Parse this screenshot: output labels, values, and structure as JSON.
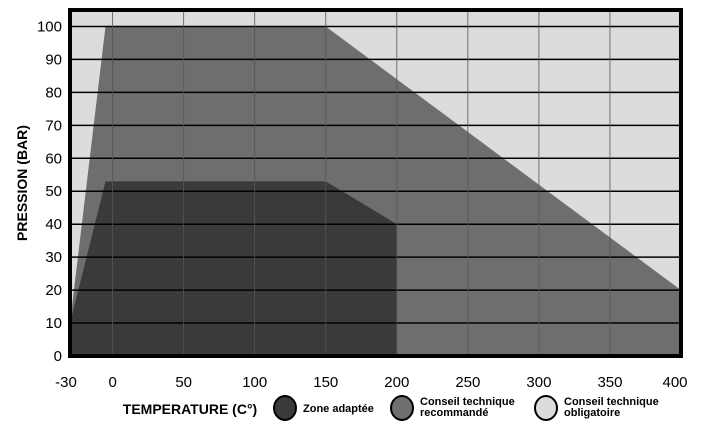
{
  "chart_data": {
    "type": "area",
    "xlabel": "TEMPERATURE  (C°)",
    "ylabel": "PRESSION (BAR)",
    "xlim": [
      -30,
      400
    ],
    "ylim": [
      0,
      105
    ],
    "x_ticks": [
      -30,
      0,
      50,
      100,
      150,
      200,
      250,
      300,
      350,
      400
    ],
    "y_ticks": [
      0,
      10,
      20,
      30,
      40,
      50,
      60,
      70,
      80,
      90,
      100
    ],
    "grid": true,
    "legend_position": "bottom",
    "series": [
      {
        "name": "Conseil technique obligatoire",
        "color": "#dcdcdc",
        "points": [
          [
            -30,
            0
          ],
          [
            -30,
            105
          ],
          [
            400,
            105
          ],
          [
            400,
            0
          ]
        ]
      },
      {
        "name": "Conseil technique recommandé",
        "color": "#6e6e6e",
        "points": [
          [
            -30,
            0
          ],
          [
            -30,
            10
          ],
          [
            -5,
            100
          ],
          [
            150,
            100
          ],
          [
            400,
            20
          ],
          [
            400,
            0
          ]
        ]
      },
      {
        "name": "Zone adaptée",
        "color": "#3a3a3a",
        "points": [
          [
            -30,
            0
          ],
          [
            -30,
            10
          ],
          [
            -5,
            53
          ],
          [
            150,
            53
          ],
          [
            200,
            40
          ],
          [
            200,
            0
          ]
        ]
      }
    ],
    "legend": [
      {
        "lines": [
          "Zone adaptée"
        ],
        "color": "#3a3a3a"
      },
      {
        "lines": [
          "Conseil technique",
          "recommandé"
        ],
        "color": "#6e6e6e"
      },
      {
        "lines": [
          "Conseil technique",
          "obligatoire"
        ],
        "color": "#dcdcdc"
      }
    ]
  }
}
